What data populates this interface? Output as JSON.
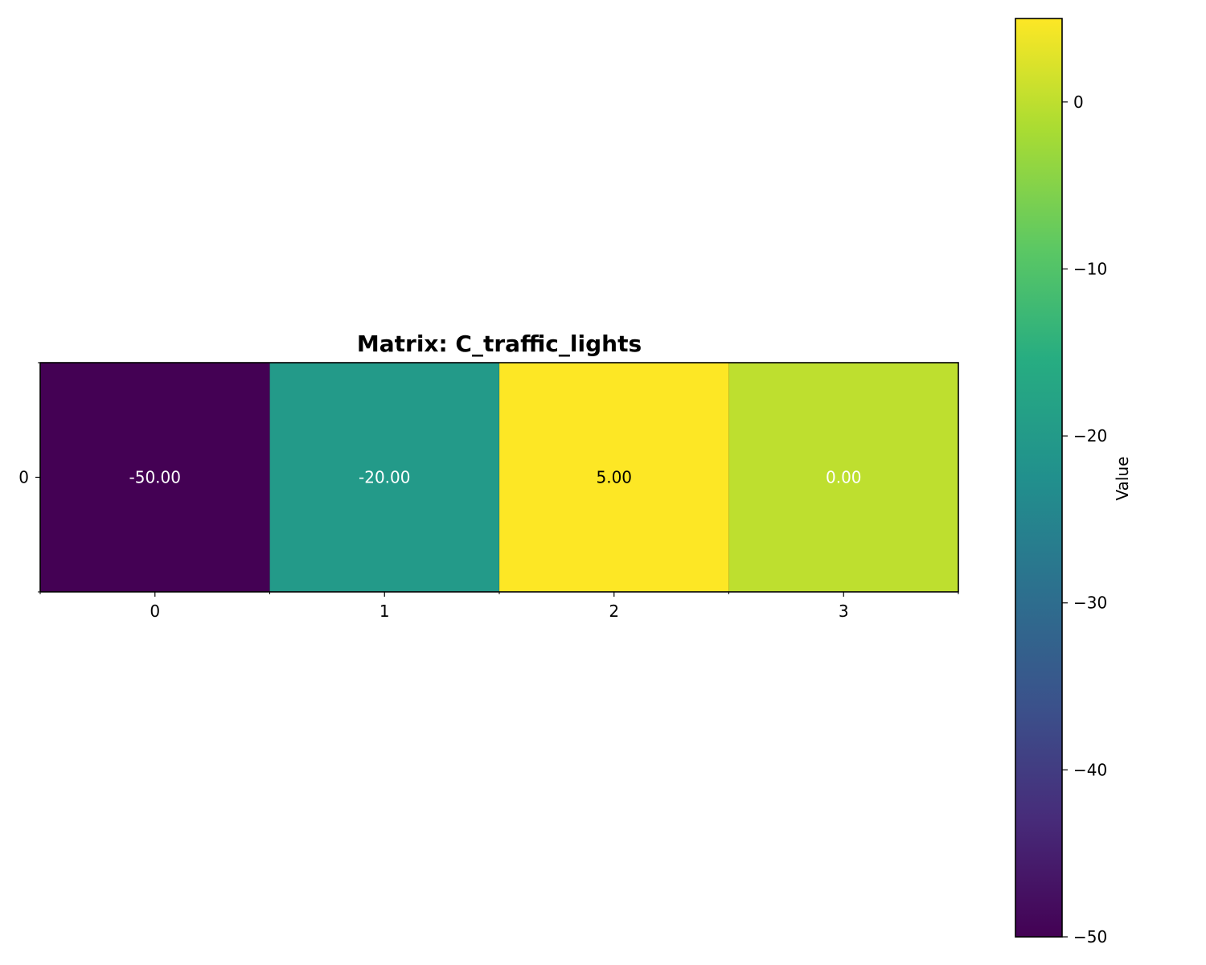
{
  "chart_data": {
    "type": "heatmap",
    "title": "Matrix: C_traffic_lights",
    "rows": [
      "0"
    ],
    "columns": [
      "0",
      "1",
      "2",
      "3"
    ],
    "values": [
      [
        -50.0,
        -20.0,
        5.0,
        0.0
      ]
    ],
    "cell_labels": [
      [
        "-50.00",
        "-20.00",
        "5.00",
        "0.00"
      ]
    ],
    "cell_label_colors": [
      [
        "#ffffff",
        "#ffffff",
        "#000000",
        "#ffffff"
      ]
    ],
    "colormap": "viridis",
    "vmin": -50,
    "vmax": 5,
    "colorbar": {
      "label": "Value",
      "ticks": [
        0,
        -10,
        -20,
        -30,
        -40,
        -50
      ],
      "tick_labels": [
        "0",
        "−10",
        "−20",
        "−30",
        "−40",
        "−50"
      ]
    },
    "grid": false,
    "legend": "none"
  }
}
